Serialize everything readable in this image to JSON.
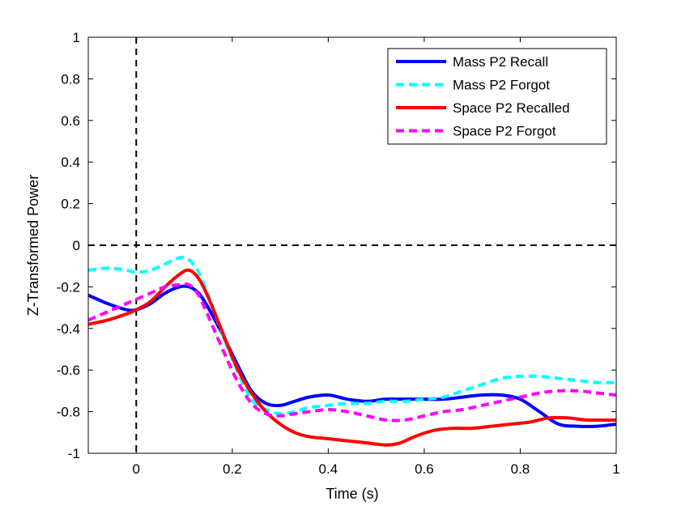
{
  "chart_data": {
    "type": "line",
    "title": "",
    "xlabel": "Time (s)",
    "ylabel": "Z-Transformed Power",
    "xlim": [
      -0.1,
      1.0
    ],
    "ylim": [
      -1.0,
      1.0
    ],
    "x_ticks": [
      0,
      0.2,
      0.4,
      0.6,
      0.8,
      1
    ],
    "x_tick_labels": [
      "0",
      "0.2",
      "0.4",
      "0.6",
      "0.8",
      "1"
    ],
    "y_ticks": [
      -1,
      -0.8,
      -0.6,
      -0.4,
      -0.2,
      0,
      0.2,
      0.4,
      0.6,
      0.8,
      1
    ],
    "y_tick_labels": [
      "-1",
      "-0.8",
      "-0.6",
      "-0.4",
      "-0.2",
      "0",
      "0.2",
      "0.4",
      "0.6",
      "0.8",
      "1"
    ],
    "grid": false,
    "legend_position": "top-right",
    "reference_lines": [
      {
        "orientation": "vertical",
        "value": 0,
        "style": "dashed",
        "color": "#000000"
      },
      {
        "orientation": "horizontal",
        "value": 0,
        "style": "dashed",
        "color": "#000000"
      }
    ],
    "series": [
      {
        "name": "Mass P2 Recall",
        "color": "#0000ff",
        "style": "solid",
        "x": [
          -0.1,
          -0.06,
          -0.02,
          0.0,
          0.03,
          0.06,
          0.09,
          0.11,
          0.13,
          0.15,
          0.18,
          0.21,
          0.24,
          0.27,
          0.3,
          0.33,
          0.36,
          0.4,
          0.44,
          0.48,
          0.52,
          0.56,
          0.6,
          0.64,
          0.68,
          0.72,
          0.76,
          0.8,
          0.84,
          0.88,
          0.92,
          0.96,
          1.0
        ],
        "y": [
          -0.24,
          -0.28,
          -0.31,
          -0.31,
          -0.28,
          -0.23,
          -0.2,
          -0.2,
          -0.23,
          -0.3,
          -0.43,
          -0.57,
          -0.7,
          -0.76,
          -0.77,
          -0.75,
          -0.73,
          -0.72,
          -0.74,
          -0.75,
          -0.74,
          -0.74,
          -0.74,
          -0.74,
          -0.73,
          -0.72,
          -0.72,
          -0.74,
          -0.8,
          -0.86,
          -0.87,
          -0.87,
          -0.86
        ]
      },
      {
        "name": "Mass P2 Forgot",
        "color": "#00ffff",
        "style": "dashed",
        "x": [
          -0.1,
          -0.06,
          -0.02,
          0.0,
          0.03,
          0.06,
          0.09,
          0.11,
          0.13,
          0.15,
          0.18,
          0.21,
          0.24,
          0.27,
          0.3,
          0.33,
          0.36,
          0.4,
          0.44,
          0.48,
          0.52,
          0.56,
          0.6,
          0.64,
          0.68,
          0.72,
          0.76,
          0.8,
          0.84,
          0.88,
          0.92,
          0.96,
          1.0
        ],
        "y": [
          -0.12,
          -0.11,
          -0.12,
          -0.13,
          -0.12,
          -0.09,
          -0.06,
          -0.07,
          -0.13,
          -0.24,
          -0.43,
          -0.6,
          -0.74,
          -0.79,
          -0.81,
          -0.8,
          -0.78,
          -0.77,
          -0.76,
          -0.76,
          -0.75,
          -0.75,
          -0.74,
          -0.73,
          -0.7,
          -0.67,
          -0.64,
          -0.63,
          -0.63,
          -0.64,
          -0.65,
          -0.66,
          -0.66
        ]
      },
      {
        "name": "Space P2 Recalled",
        "color": "#ff0000",
        "style": "solid",
        "x": [
          -0.1,
          -0.06,
          -0.02,
          0.0,
          0.03,
          0.06,
          0.09,
          0.11,
          0.13,
          0.15,
          0.18,
          0.21,
          0.24,
          0.27,
          0.3,
          0.33,
          0.36,
          0.4,
          0.44,
          0.48,
          0.52,
          0.55,
          0.58,
          0.62,
          0.66,
          0.7,
          0.74,
          0.78,
          0.82,
          0.86,
          0.9,
          0.94,
          1.0
        ],
        "y": [
          -0.38,
          -0.36,
          -0.33,
          -0.31,
          -0.27,
          -0.2,
          -0.14,
          -0.12,
          -0.16,
          -0.25,
          -0.42,
          -0.59,
          -0.71,
          -0.8,
          -0.86,
          -0.9,
          -0.92,
          -0.93,
          -0.94,
          -0.95,
          -0.96,
          -0.95,
          -0.92,
          -0.89,
          -0.88,
          -0.88,
          -0.87,
          -0.86,
          -0.85,
          -0.83,
          -0.83,
          -0.84,
          -0.84
        ]
      },
      {
        "name": "Space P2 Forgot",
        "color": "#ff00ff",
        "style": "dashed",
        "x": [
          -0.1,
          -0.06,
          -0.02,
          0.0,
          0.03,
          0.06,
          0.09,
          0.11,
          0.13,
          0.15,
          0.18,
          0.21,
          0.24,
          0.27,
          0.3,
          0.33,
          0.36,
          0.4,
          0.44,
          0.48,
          0.52,
          0.56,
          0.6,
          0.64,
          0.68,
          0.72,
          0.76,
          0.8,
          0.84,
          0.88,
          0.92,
          0.96,
          1.0
        ],
        "y": [
          -0.36,
          -0.32,
          -0.28,
          -0.26,
          -0.23,
          -0.2,
          -0.19,
          -0.19,
          -0.24,
          -0.34,
          -0.5,
          -0.65,
          -0.76,
          -0.81,
          -0.82,
          -0.81,
          -0.8,
          -0.79,
          -0.8,
          -0.82,
          -0.84,
          -0.84,
          -0.82,
          -0.8,
          -0.79,
          -0.77,
          -0.75,
          -0.73,
          -0.71,
          -0.7,
          -0.7,
          -0.71,
          -0.72
        ]
      }
    ]
  }
}
